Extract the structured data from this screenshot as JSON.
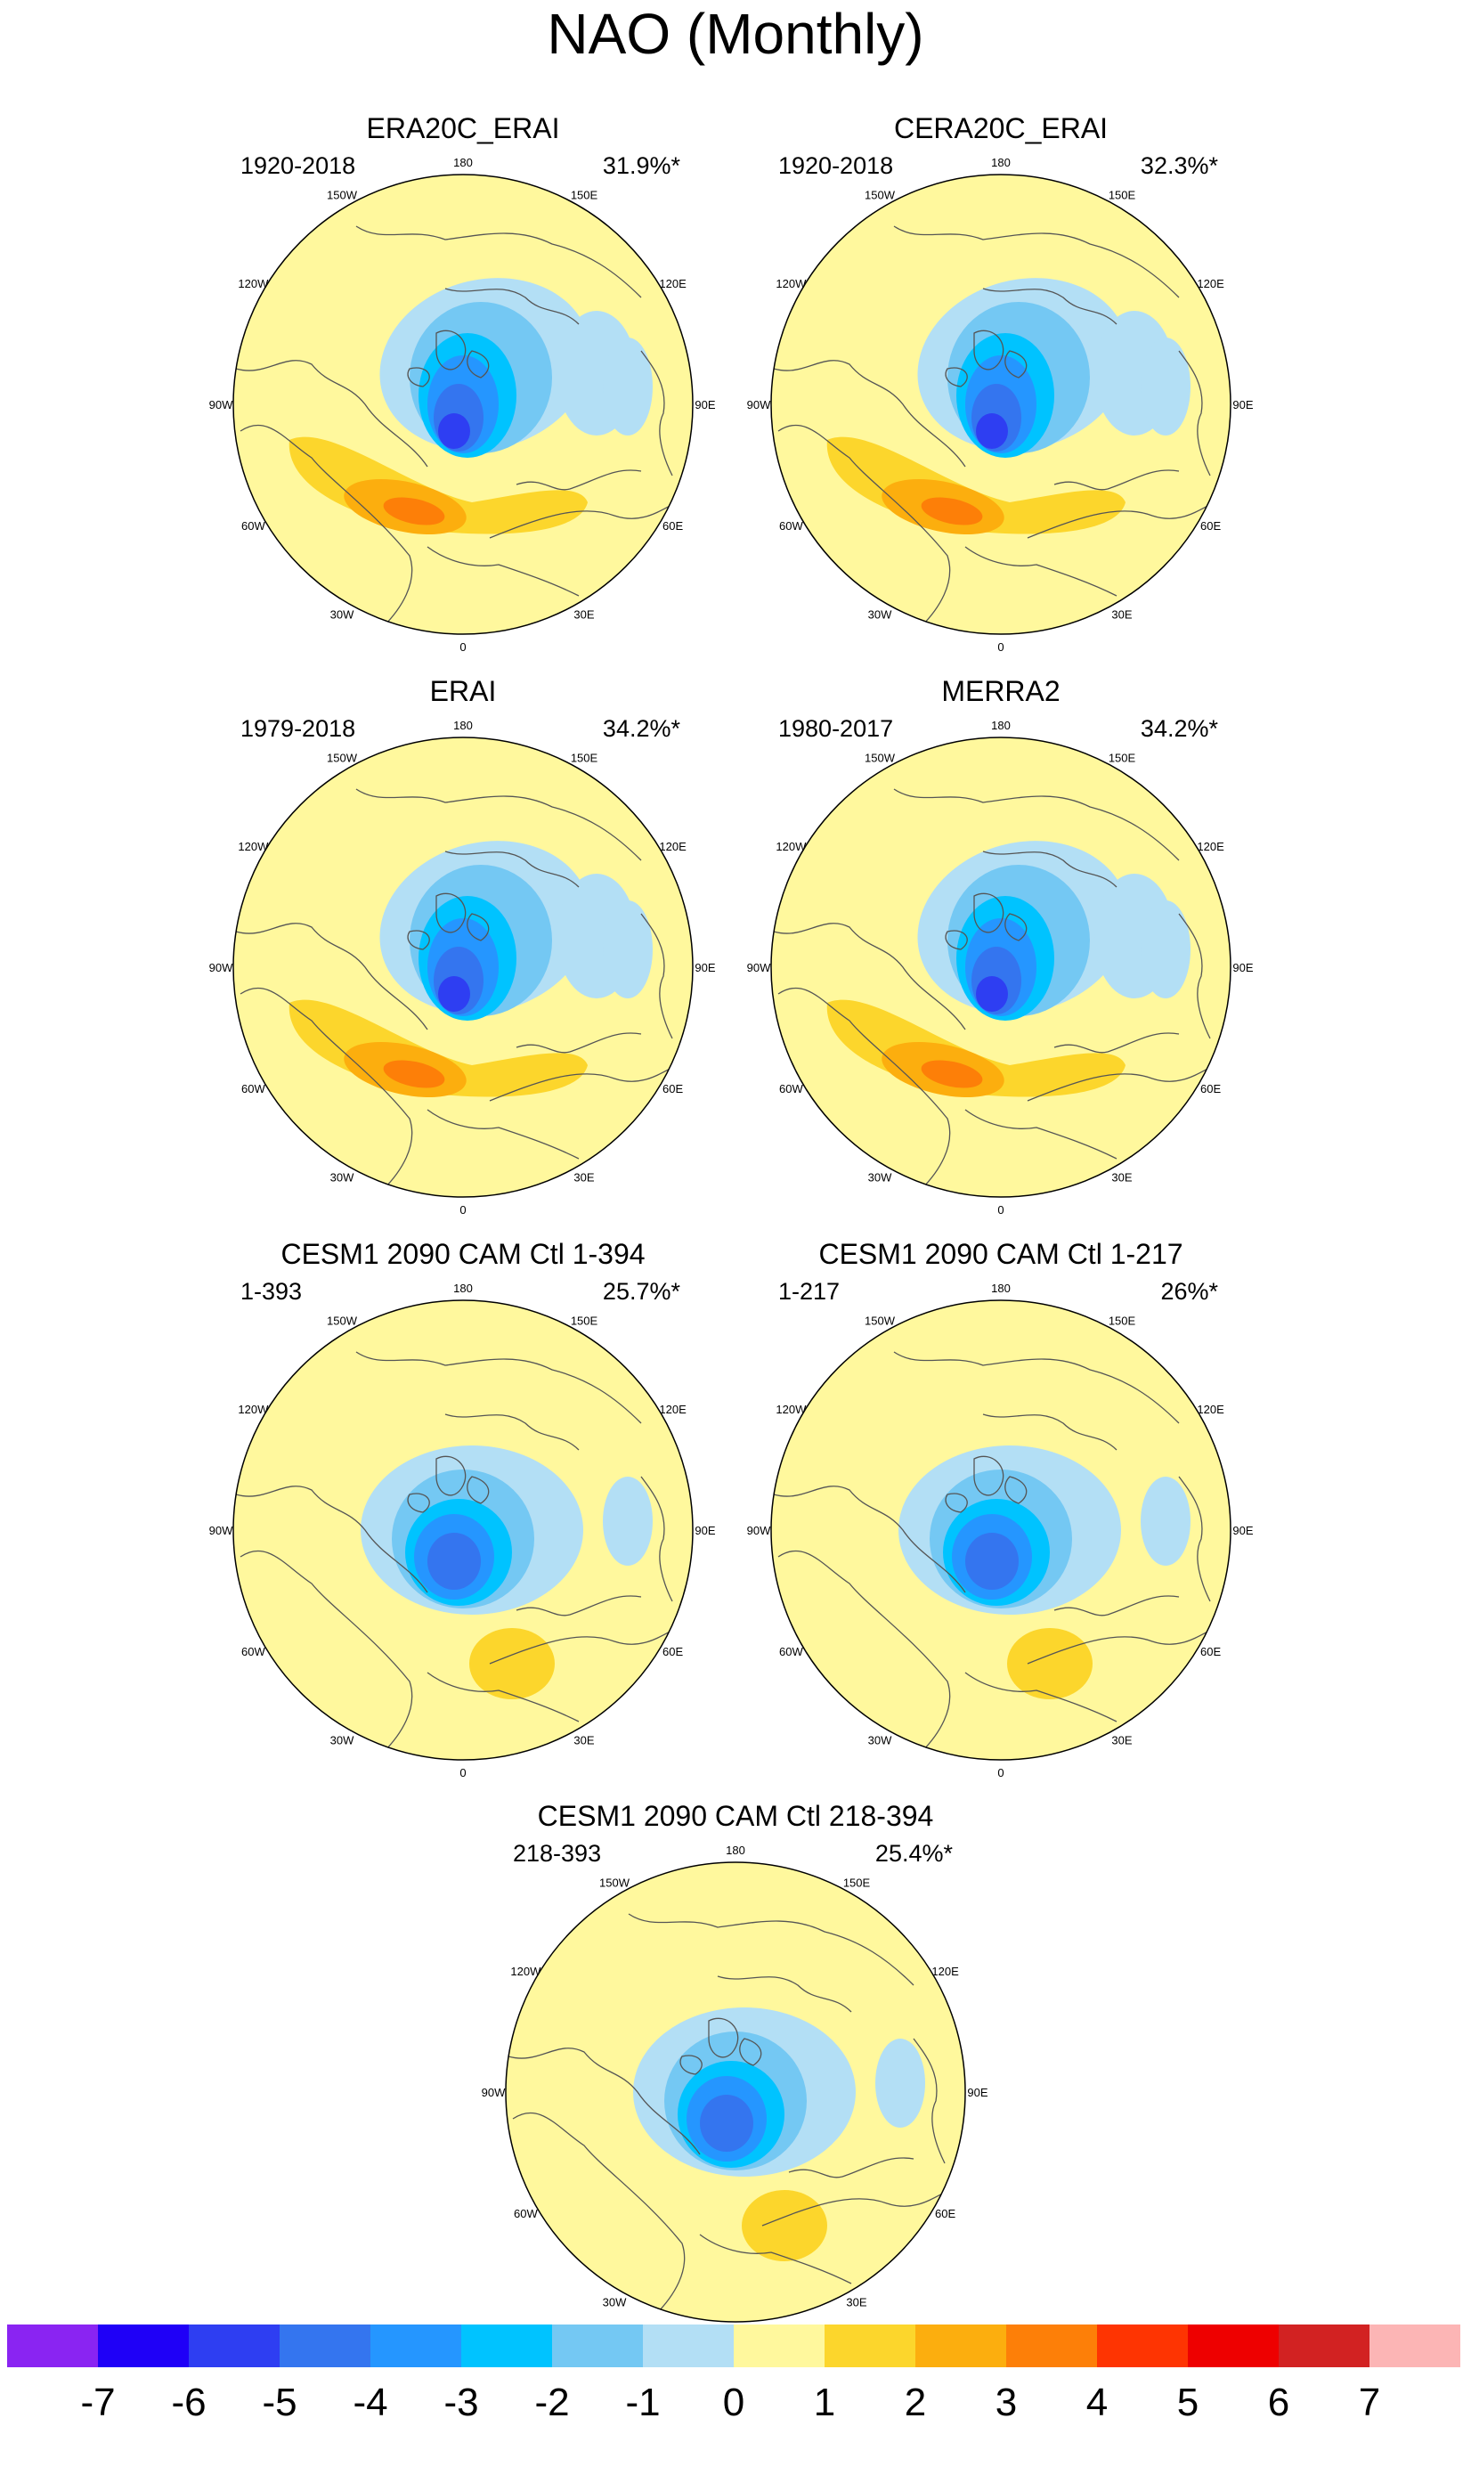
{
  "title": "NAO (Monthly)",
  "lon_labels": {
    "n": "180",
    "nnw": "150W",
    "nne": "150E",
    "wnw": "120W",
    "ene": "120E",
    "w": "90W",
    "e": "90E",
    "wsw": "60W",
    "ese": "60E",
    "ssw": "30W",
    "sse": "30E",
    "s": "0"
  },
  "panels": [
    {
      "title": "ERA20C_ERAI",
      "period": "1920-2018",
      "variance": "31.9%*",
      "pattern": "ERA20C"
    },
    {
      "title": "CERA20C_ERAI",
      "period": "1920-2018",
      "variance": "32.3%*",
      "pattern": "ERA20C"
    },
    {
      "title": "ERAI",
      "period": "1979-2018",
      "variance": "34.2%*",
      "pattern": "ERA20C"
    },
    {
      "title": "MERRA2",
      "period": "1980-2017",
      "variance": "34.2%*",
      "pattern": "ERA20C"
    },
    {
      "title": "CESM1 2090 CAM Ctl 1-394",
      "period": "1-393",
      "variance": "25.7%*",
      "pattern": "CESM"
    },
    {
      "title": "CESM1 2090 CAM Ctl 1-217",
      "period": "1-217",
      "variance": "26%*",
      "pattern": "CESM"
    },
    {
      "title": "CESM1 2090 CAM Ctl 218-394",
      "period": "218-393",
      "variance": "25.4%*",
      "pattern": "CESM"
    }
  ],
  "colorbar": {
    "labels": [
      "-7",
      "-6",
      "-5",
      "-4",
      "-3",
      "-2",
      "-1",
      "0",
      "1",
      "2",
      "3",
      "4",
      "5",
      "6",
      "7"
    ],
    "colors": [
      "#8a24f2",
      "#1f00f7",
      "#2e3ef2",
      "#3475ef",
      "#2596ff",
      "#00c3ff",
      "#74c8f3",
      "#b3dff5",
      "#fff89d",
      "#fcd62c",
      "#fcae0e",
      "#fd7f08",
      "#fe3402",
      "#ee0000",
      "#d22222",
      "#fcb5b5"
    ]
  }
}
